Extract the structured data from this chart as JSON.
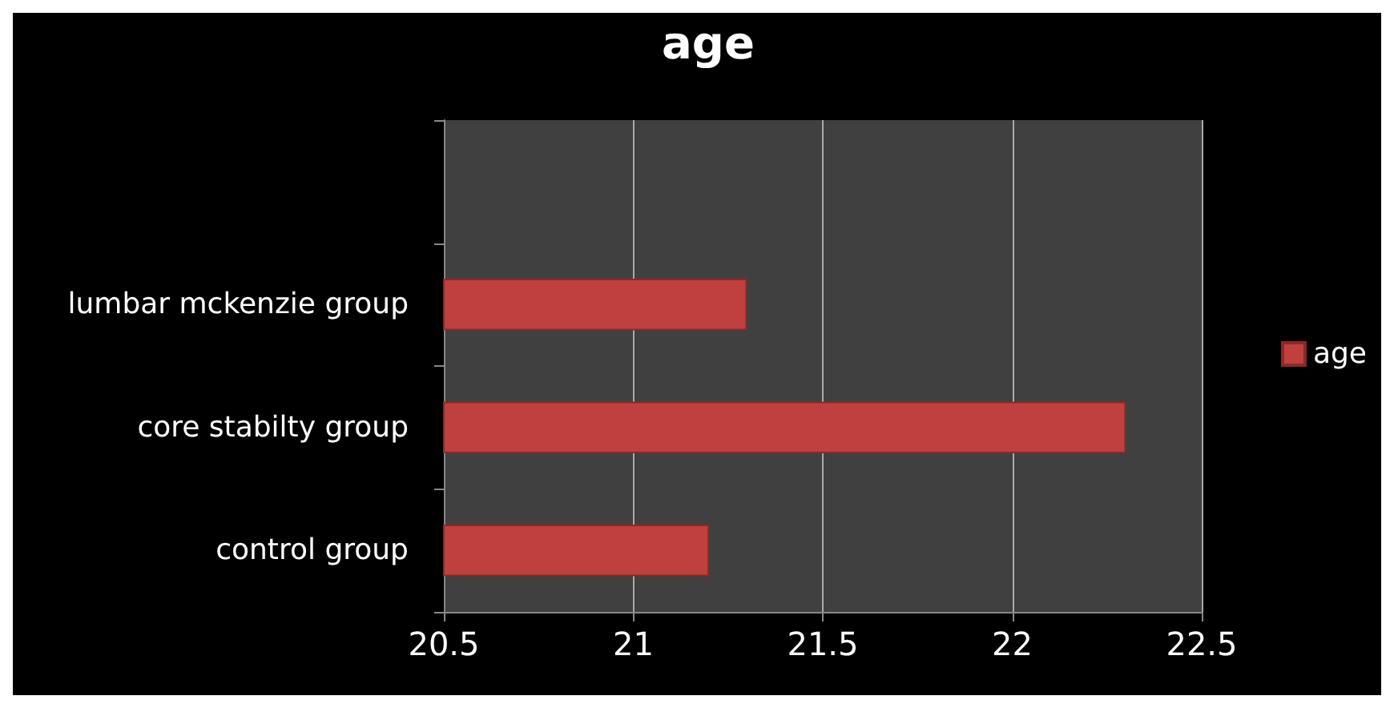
{
  "chart_data": {
    "type": "bar",
    "orientation": "horizontal",
    "title": "age",
    "categories": [
      null,
      "lumbar mckenzie group",
      "core stabilty group",
      "control group"
    ],
    "series": [
      {
        "name": "age",
        "color": "#c0403e",
        "values": [
          null,
          21.3,
          22.3,
          21.2
        ]
      }
    ],
    "xlim": [
      20.5,
      22.5
    ],
    "xticks": [
      20.5,
      21,
      21.5,
      22,
      22.5
    ],
    "grid": "x",
    "legend": "right"
  }
}
